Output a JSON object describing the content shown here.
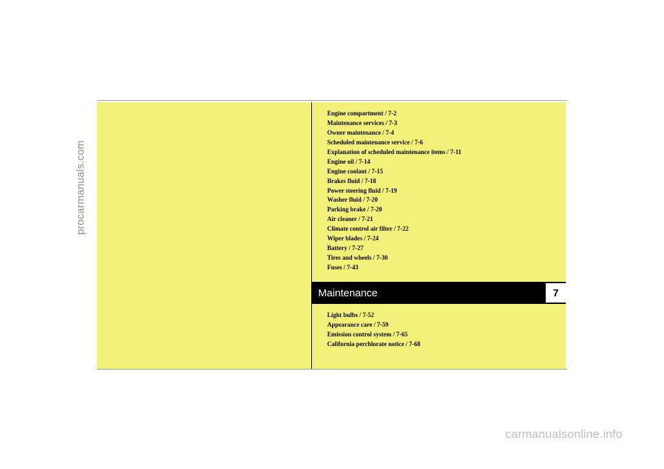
{
  "watermarks": {
    "left": "procarmanuals.com",
    "bottom": "carmanualsonline.info"
  },
  "section": {
    "title": "Maintenance",
    "number": "7"
  },
  "toc_top": [
    "Engine compartment / 7-2",
    "Maintenance services / 7-3",
    "Owner maintenance / 7-4",
    "Scheduled maintenance service / 7-6",
    "Explanation of scheduled maintenance items / 7-11",
    "Engine oil / 7-14",
    "Engine coolant / 7-15",
    "Brakes fluid / 7-18",
    "Power steering fluid / 7-19",
    "Washer fluid / 7-20",
    "Parking brake  / 7-20",
    "Air cleaner / 7-21",
    "Climate control air filter / 7-22",
    "Wiper blades / 7-24",
    "Battery / 7-27",
    "Tires and wheels / 7-30",
    "Fuses / 7-43"
  ],
  "toc_bottom": [
    "Light bulbs / 7-52",
    "Appearance care / 7-59",
    "Emission control system / 7-65",
    "California perchlorate notice / 7-68"
  ],
  "colors": {
    "yellow_bg": "#f4f17a",
    "black": "#000000",
    "white": "#ffffff",
    "watermark_left": "#8a8a8a",
    "watermark_bottom": "#bdbdbd",
    "frame_border": "#999999"
  }
}
